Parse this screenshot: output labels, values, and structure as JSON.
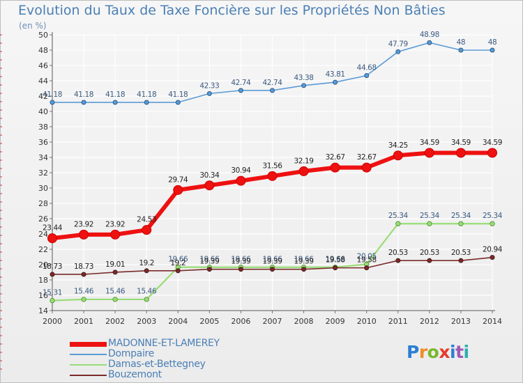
{
  "header": {
    "title": "Evolution du Taux de Taxe Foncière sur les Propriétés Non Bâties",
    "unit": "(en %)"
  },
  "logo": {
    "text": "Proxiti",
    "colors": [
      "#2a7fd4",
      "#f28c28",
      "#7ab82b",
      "#e63a2e",
      "#2a7fd4",
      "#a05ab4",
      "#2ab0b0"
    ]
  },
  "chart_data": {
    "type": "line",
    "title": "Evolution du Taux de Taxe Foncière sur les Propriétés Non Bâties",
    "ylabel": "(en %)",
    "x": [
      "2000",
      "2001",
      "2002",
      "2003",
      "2004",
      "2005",
      "2006",
      "2007",
      "2008",
      "2009",
      "2010",
      "2011",
      "2012",
      "2013",
      "2014"
    ],
    "ylim": [
      14,
      50
    ],
    "yticks": [
      14,
      16,
      18,
      20,
      22,
      24,
      26,
      28,
      30,
      32,
      34,
      36,
      38,
      40,
      42,
      44,
      46,
      48,
      50
    ],
    "grid": true,
    "legend_position": "bottom",
    "series": [
      {
        "name": "Dompaire",
        "color": "#5b9bd5",
        "values": [
          41.18,
          41.18,
          41.18,
          41.18,
          41.18,
          42.33,
          42.74,
          42.74,
          43.38,
          43.81,
          44.68,
          47.79,
          48.98,
          48,
          48
        ],
        "labels": [
          "41.18",
          "41.18",
          "41.18",
          "41.18",
          "41.18",
          "42.33",
          "42.74",
          "42.74",
          "43.38",
          "43.81",
          "44.68",
          "47.79",
          "48.98",
          "48",
          "48"
        ]
      },
      {
        "name": "Damas-et-Bettegney",
        "color": "#99dd77",
        "values": [
          15.31,
          15.46,
          15.46,
          15.46,
          19.66,
          19.66,
          19.66,
          19.66,
          19.66,
          19.66,
          20.05,
          25.34,
          25.34,
          25.34,
          25.34
        ],
        "labels": [
          "15.31",
          "15.46",
          "15.46",
          "15.46",
          "19.66",
          "19.66",
          "19.66",
          "19.66",
          "19.66",
          "19.66",
          "20.05",
          "25.34",
          "25.34",
          "25.34",
          "25.34"
        ]
      },
      {
        "name": "Bouzemont",
        "color": "#7a2a2a",
        "values": [
          18.73,
          18.73,
          19.01,
          19.2,
          19.2,
          19.39,
          19.39,
          19.39,
          19.39,
          19.58,
          19.58,
          20.53,
          20.53,
          20.53,
          20.94
        ],
        "labels": [
          "18.73",
          "18.73",
          "19.01",
          "19.2",
          "19.2",
          "19.39",
          "19.39",
          "19.39",
          "19.39",
          "19.58",
          "19.58",
          "20.53",
          "20.53",
          "20.53",
          "20.94"
        ]
      },
      {
        "name": "MADONNE-ET-LAMEREY",
        "color": "#ee1111",
        "values": [
          23.44,
          23.92,
          23.92,
          24.53,
          29.74,
          30.34,
          30.94,
          31.56,
          32.19,
          32.67,
          32.67,
          34.25,
          34.59,
          34.59,
          34.59
        ],
        "labels": [
          "23.44",
          "23.92",
          "23.92",
          "24.53",
          "29.74",
          "30.34",
          "30.94",
          "31.56",
          "32.19",
          "32.67",
          "32.67",
          "34.25",
          "34.59",
          "34.59",
          "34.59"
        ]
      }
    ],
    "legend_order": [
      "MADONNE-ET-LAMEREY",
      "Dompaire",
      "Damas-et-Bettegney",
      "Bouzemont"
    ]
  }
}
